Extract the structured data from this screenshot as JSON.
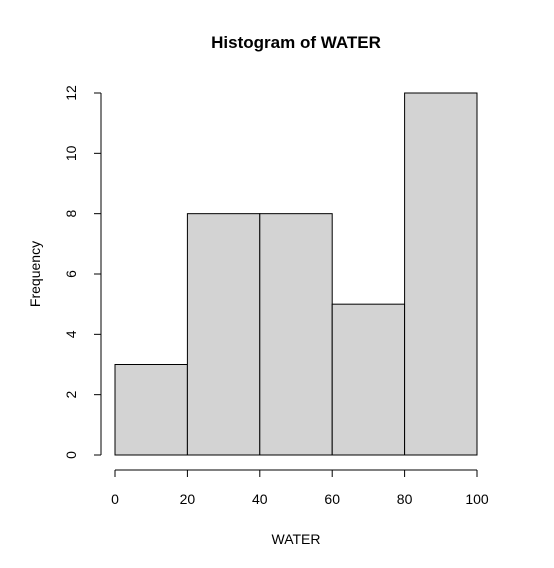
{
  "chart_data": {
    "type": "bar",
    "title": "Histogram of WATER",
    "xlabel": "WATER",
    "ylabel": "Frequency",
    "bins": [
      {
        "from": 0,
        "to": 20,
        "value": 3
      },
      {
        "from": 20,
        "to": 40,
        "value": 8
      },
      {
        "from": 40,
        "to": 60,
        "value": 8
      },
      {
        "from": 60,
        "to": 80,
        "value": 5
      },
      {
        "from": 80,
        "to": 100,
        "value": 12
      }
    ],
    "xlim": [
      0,
      100
    ],
    "ylim": [
      0,
      12
    ],
    "x_ticks": [
      0,
      20,
      40,
      60,
      80,
      100
    ],
    "y_ticks": [
      0,
      2,
      4,
      6,
      8,
      10,
      12
    ],
    "bar_color": "#d3d3d3",
    "grid": false
  }
}
